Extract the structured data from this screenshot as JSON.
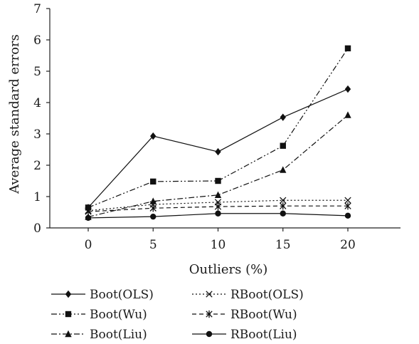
{
  "chart_data": {
    "type": "line",
    "title": "",
    "xlabel": "Outliers (%)",
    "ylabel": "Average standard errors",
    "x": [
      0,
      5,
      10,
      15,
      20
    ],
    "ylim": [
      0,
      7
    ],
    "yticks": [
      0,
      1,
      2,
      3,
      4,
      5,
      6,
      7
    ],
    "grid": false,
    "legend_position": "bottom",
    "series": [
      {
        "name": "Boot(OLS)",
        "marker": "diamond",
        "dash": "solid",
        "values": [
          0.65,
          2.93,
          2.43,
          3.53,
          4.43
        ]
      },
      {
        "name": "Boot(Wu)",
        "marker": "square",
        "dash": "dashdotdot",
        "values": [
          0.65,
          1.48,
          1.5,
          2.62,
          5.73
        ]
      },
      {
        "name": "Boot(Liu)",
        "marker": "triangle",
        "dash": "dashdot",
        "values": [
          0.35,
          0.85,
          1.05,
          1.85,
          3.6
        ]
      },
      {
        "name": "RBoot(OLS)",
        "marker": "x",
        "dash": "dotted",
        "values": [
          0.55,
          0.75,
          0.82,
          0.88,
          0.88
        ]
      },
      {
        "name": "RBoot(Wu)",
        "marker": "star",
        "dash": "dashed",
        "values": [
          0.52,
          0.63,
          0.68,
          0.7,
          0.7
        ]
      },
      {
        "name": "RBoot(Liu)",
        "marker": "circle",
        "dash": "solid",
        "values": [
          0.32,
          0.36,
          0.46,
          0.46,
          0.39
        ]
      }
    ]
  }
}
